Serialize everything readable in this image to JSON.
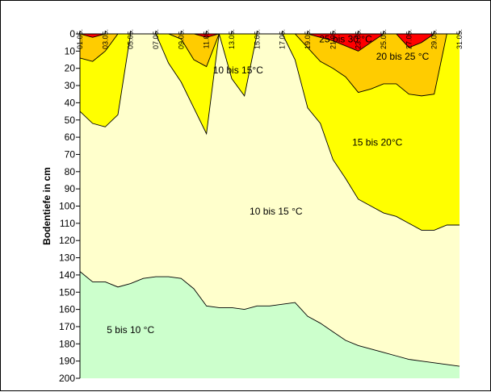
{
  "chart_data": {
    "type": "area",
    "title": "",
    "xlabel": "",
    "ylabel": "Bodentiefe in cm",
    "ylim": [
      0,
      200
    ],
    "y_inverted": true,
    "y_ticks": [
      0,
      10,
      20,
      30,
      40,
      50,
      60,
      70,
      80,
      90,
      100,
      110,
      120,
      130,
      140,
      150,
      160,
      170,
      180,
      190,
      200
    ],
    "x_ticks": [
      "01.05.",
      "03.05.",
      "05.05.",
      "07.05.",
      "09.05.",
      "11.05.",
      "13.05.",
      "15.05.",
      "17.05.",
      "19.05.",
      "21.05.",
      "23.05.",
      "25.05.",
      "27.05.",
      "29.05.",
      "31.05."
    ],
    "x": [
      "01.05.",
      "02.05.",
      "03.05.",
      "04.05.",
      "05.05.",
      "06.05.",
      "07.05.",
      "08.05.",
      "09.05.",
      "10.05.",
      "11.05.",
      "12.05.",
      "13.05.",
      "14.05.",
      "15.05.",
      "16.05.",
      "17.05.",
      "18.05.",
      "19.05.",
      "20.05.",
      "21.05.",
      "22.05.",
      "23.05.",
      "24.05.",
      "25.05.",
      "26.05.",
      "27.05.",
      "28.05.",
      "29.05.",
      "30.05.",
      "31.05."
    ],
    "grid": false,
    "colors": {
      "5 bis 10 °C": "#ccffcc",
      "10 bis 15 °C": "#ffffcc",
      "15 bis 20°C": "#ffff00",
      "20 bis 25 °C": "#ffcc00",
      "25 bis 30 °C": "#ff0000"
    },
    "boundaries": [
      {
        "name": "5 bis 10 °C / 10 bis 15 °C",
        "values": [
          138,
          144,
          144,
          147,
          145,
          142,
          141,
          141,
          142,
          148,
          158,
          159,
          159,
          160,
          158,
          158,
          157,
          156,
          164,
          168,
          173,
          178,
          181,
          183,
          185,
          187,
          189,
          190,
          191,
          192,
          193
        ]
      },
      {
        "name": "10 bis 15 °C / 15 bis 20°C",
        "values": [
          45,
          52,
          54,
          47,
          0,
          0,
          0,
          17,
          28,
          43,
          58,
          0,
          26,
          36,
          0,
          0,
          0,
          15,
          43,
          52,
          73,
          84,
          96,
          100,
          104,
          106,
          110,
          114,
          114,
          111,
          111
        ]
      },
      {
        "name": "15 bis 20°C / 20 bis 25 °C",
        "values": [
          14,
          16,
          10,
          0,
          0,
          0,
          0,
          0,
          3,
          15,
          19,
          0,
          0,
          0,
          0,
          0,
          0,
          0,
          8,
          16,
          20,
          25,
          34,
          32,
          29,
          29,
          35,
          36,
          35,
          0,
          0
        ]
      },
      {
        "name": "20 bis 25 °C / 25 bis 30 °C",
        "values": [
          0,
          2,
          0,
          0,
          0,
          0,
          0,
          0,
          0,
          0,
          2,
          0,
          0,
          0,
          0,
          0,
          0,
          0,
          0,
          2,
          4,
          7,
          10,
          5,
          0,
          0,
          8,
          5,
          0,
          0,
          0
        ]
      }
    ],
    "bands": [
      {
        "name": "5 bis 10 °C",
        "label": "5 bis 10 °C",
        "label_x": 4,
        "label_y": 172
      },
      {
        "name": "10 bis 15 °C",
        "label": "10 bis 15 °C",
        "label_x": 15.5,
        "label_y": 103
      },
      {
        "name": "10 bis 15 °C",
        "label": "10 bis 15°C",
        "label_x": 12.5,
        "label_y": 21
      },
      {
        "name": "15 bis 20°C",
        "label": "15 bis 20°C",
        "label_x": 23.5,
        "label_y": 63
      },
      {
        "name": "20 bis 25 °C",
        "label": "20 bis 25 °C",
        "label_x": 25.5,
        "label_y": 13
      },
      {
        "name": "25 bis 30 °C",
        "label": "25 bis 30 °C",
        "label_x": 21,
        "label_y": 3
      }
    ]
  }
}
